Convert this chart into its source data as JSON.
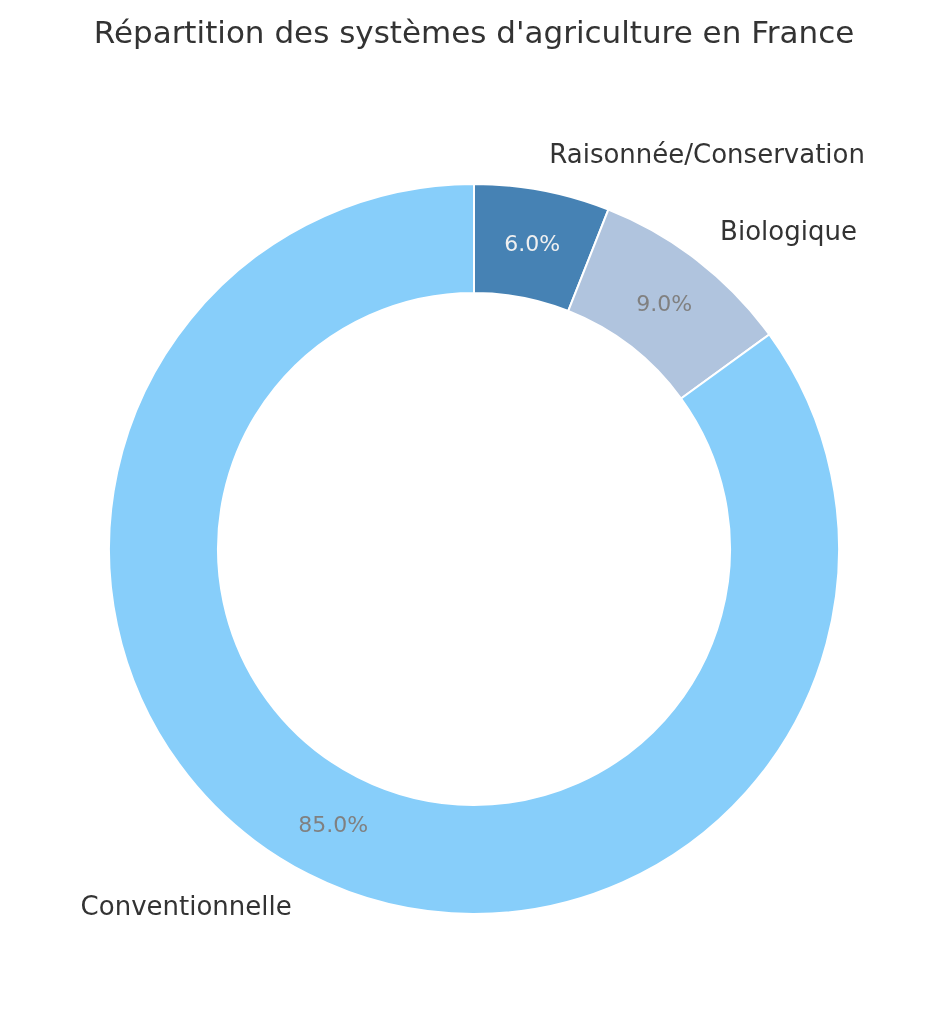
{
  "chart_data": {
    "type": "donut",
    "title": "Répartition des systèmes d'agriculture en France",
    "categories": [
      "Raisonnée/Conservation",
      "Biologique",
      "Conventionnelle"
    ],
    "values": [
      6,
      9,
      85
    ],
    "colors": [
      "#4682b4",
      "#b0c4de",
      "#87cefa"
    ],
    "value_labels": [
      "6.0%",
      "9.0%",
      "85.0%"
    ]
  }
}
